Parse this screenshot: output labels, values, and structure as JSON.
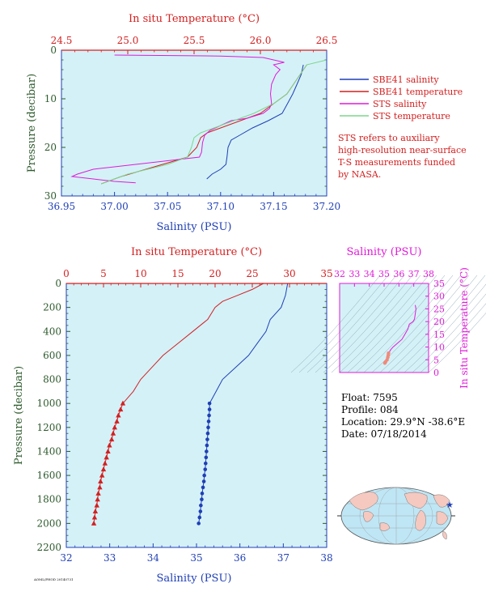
{
  "colors": {
    "red": "#d42020",
    "blue": "#1f3fb5",
    "magenta": "#e01ad8",
    "green": "#7dd68a",
    "salmon": "#f08a7a",
    "dark_green": "#2d5a2d",
    "plot_bg": "#d4f1f8"
  },
  "chart_data": [
    {
      "id": "upper",
      "type": "line",
      "title_top": "In situ Temperature (°C)",
      "xlabel": "Salinity (PSU)",
      "ylabel": "Pressure (decibar)",
      "x_ticks": [
        "36.95",
        "37.00",
        "37.05",
        "37.10",
        "37.15",
        "37.20"
      ],
      "x_top_ticks": [
        "24.5",
        "25.0",
        "25.5",
        "26.0",
        "26.5"
      ],
      "y_ticks": [
        "0",
        "10",
        "20",
        "30"
      ],
      "xlim": [
        36.95,
        37.2
      ],
      "x_top_lim": [
        24.5,
        26.5
      ],
      "ylim": [
        0,
        30
      ],
      "legend_placement": "right",
      "legend": [
        {
          "label": "SBE41 salinity",
          "color": "#1f3fb5"
        },
        {
          "label": "SBE41 temperature",
          "color": "#d42020"
        },
        {
          "label": "STS salinity",
          "color": "#e01ad8"
        },
        {
          "label": "STS temperature",
          "color": "#7dd68a"
        }
      ],
      "note": [
        "STS refers to auxiliary",
        "high-resolution near-surface",
        "T-S measurements funded",
        "by NASA."
      ],
      "series": [
        {
          "name": "SBE41 salinity",
          "axis": "bottom",
          "points": [
            [
              37.178,
              3
            ],
            [
              37.176,
              5
            ],
            [
              37.172,
              7
            ],
            [
              37.168,
              9
            ],
            [
              37.163,
              11
            ],
            [
              37.158,
              13
            ],
            [
              37.145,
              14.5
            ],
            [
              37.13,
              16
            ],
            [
              37.118,
              17.5
            ],
            [
              37.11,
              18.5
            ],
            [
              37.107,
              20
            ],
            [
              37.106,
              22
            ],
            [
              37.105,
              23.5
            ],
            [
              37.1,
              24.5
            ],
            [
              37.092,
              25.5
            ],
            [
              37.087,
              26.5
            ]
          ]
        },
        {
          "name": "SBE41 temperature",
          "axis": "top",
          "points": [
            [
              26.35,
              3
            ],
            [
              26.3,
              5
            ],
            [
              26.25,
              7
            ],
            [
              26.2,
              9
            ],
            [
              26.1,
              11
            ],
            [
              26.0,
              13
            ],
            [
              25.85,
              14.5
            ],
            [
              25.7,
              16
            ],
            [
              25.6,
              17
            ],
            [
              25.55,
              18
            ],
            [
              25.52,
              20
            ],
            [
              25.45,
              22
            ],
            [
              25.2,
              24
            ],
            [
              24.95,
              26
            ],
            [
              24.8,
              27.5
            ]
          ]
        },
        {
          "name": "STS salinity",
          "axis": "bottom",
          "points": [
            [
              37.0,
              1
            ],
            [
              37.1,
              1.2
            ],
            [
              37.14,
              1.5
            ],
            [
              37.15,
              2
            ],
            [
              37.16,
              2.5
            ],
            [
              37.15,
              3
            ],
            [
              37.156,
              4
            ],
            [
              37.152,
              5
            ],
            [
              37.15,
              6
            ],
            [
              37.148,
              7
            ],
            [
              37.147,
              9
            ],
            [
              37.148,
              11
            ],
            [
              37.146,
              12
            ],
            [
              37.14,
              13
            ],
            [
              37.125,
              14
            ],
            [
              37.11,
              14.5
            ],
            [
              37.1,
              15.5
            ],
            [
              37.09,
              16.5
            ],
            [
              37.085,
              17.5
            ],
            [
              37.083,
              19
            ],
            [
              37.082,
              21
            ],
            [
              37.08,
              22
            ],
            [
              37.06,
              22.5
            ],
            [
              37.04,
              23
            ],
            [
              37.02,
              23.5
            ],
            [
              37.0,
              24
            ],
            [
              36.98,
              24.5
            ],
            [
              36.965,
              25.5
            ],
            [
              36.96,
              26
            ],
            [
              36.98,
              26.5
            ],
            [
              37.0,
              27
            ],
            [
              37.02,
              27.3
            ]
          ]
        },
        {
          "name": "STS temperature",
          "axis": "top",
          "points": [
            [
              26.5,
              2
            ],
            [
              26.35,
              3
            ],
            [
              26.3,
              5
            ],
            [
              26.25,
              7
            ],
            [
              26.2,
              9
            ],
            [
              26.1,
              11
            ],
            [
              25.95,
              13
            ],
            [
              25.8,
              14.5
            ],
            [
              25.65,
              16
            ],
            [
              25.55,
              17
            ],
            [
              25.5,
              18
            ],
            [
              25.48,
              20
            ],
            [
              25.45,
              22
            ],
            [
              25.3,
              23.5
            ],
            [
              25.0,
              25.5
            ],
            [
              24.8,
              27.5
            ]
          ]
        }
      ]
    },
    {
      "id": "lower",
      "type": "line",
      "title_top": "In situ Temperature (°C)",
      "xlabel": "Salinity (PSU)",
      "ylabel": "Pressure (decibar)",
      "x_ticks": [
        "32",
        "33",
        "34",
        "35",
        "36",
        "37",
        "38"
      ],
      "x_top_ticks": [
        "0",
        "5",
        "10",
        "15",
        "20",
        "25",
        "30",
        "35"
      ],
      "y_ticks": [
        "0",
        "200",
        "400",
        "600",
        "800",
        "1000",
        "1200",
        "1400",
        "1600",
        "1800",
        "2000",
        "2200"
      ],
      "xlim": [
        32,
        38
      ],
      "x_top_lim": [
        0,
        35
      ],
      "ylim": [
        0,
        2200
      ],
      "series": [
        {
          "name": "temperature",
          "axis": "top",
          "marker": "triangle",
          "marker_from": 1000,
          "points": [
            [
              26.5,
              0
            ],
            [
              25,
              50
            ],
            [
              23,
              100
            ],
            [
              21,
              150
            ],
            [
              20,
              200
            ],
            [
              19,
              300
            ],
            [
              17,
              400
            ],
            [
              15,
              500
            ],
            [
              13,
              600
            ],
            [
              11.5,
              700
            ],
            [
              10,
              800
            ],
            [
              9,
              900
            ],
            [
              7.6,
              1000
            ],
            [
              7.3,
              1050
            ],
            [
              7.0,
              1100
            ],
            [
              6.8,
              1150
            ],
            [
              6.5,
              1200
            ],
            [
              6.3,
              1250
            ],
            [
              6.1,
              1300
            ],
            [
              5.8,
              1350
            ],
            [
              5.6,
              1400
            ],
            [
              5.4,
              1450
            ],
            [
              5.2,
              1500
            ],
            [
              5.0,
              1550
            ],
            [
              4.8,
              1600
            ],
            [
              4.6,
              1650
            ],
            [
              4.5,
              1700
            ],
            [
              4.3,
              1750
            ],
            [
              4.2,
              1800
            ],
            [
              4.1,
              1850
            ],
            [
              3.9,
              1900
            ],
            [
              3.8,
              1950
            ],
            [
              3.7,
              2000
            ]
          ]
        },
        {
          "name": "salinity",
          "axis": "bottom",
          "marker": "dot",
          "marker_from": 1000,
          "points": [
            [
              37.1,
              0
            ],
            [
              37.05,
              100
            ],
            [
              36.95,
              200
            ],
            [
              36.7,
              300
            ],
            [
              36.6,
              400
            ],
            [
              36.4,
              500
            ],
            [
              36.2,
              600
            ],
            [
              35.9,
              700
            ],
            [
              35.6,
              800
            ],
            [
              35.45,
              900
            ],
            [
              35.3,
              1000
            ],
            [
              35.3,
              1050
            ],
            [
              35.29,
              1100
            ],
            [
              35.28,
              1150
            ],
            [
              35.27,
              1200
            ],
            [
              35.26,
              1250
            ],
            [
              35.25,
              1300
            ],
            [
              35.24,
              1350
            ],
            [
              35.23,
              1400
            ],
            [
              35.22,
              1450
            ],
            [
              35.21,
              1500
            ],
            [
              35.2,
              1550
            ],
            [
              35.18,
              1600
            ],
            [
              35.17,
              1650
            ],
            [
              35.15,
              1700
            ],
            [
              35.13,
              1750
            ],
            [
              35.12,
              1800
            ],
            [
              35.1,
              1850
            ],
            [
              35.09,
              1900
            ],
            [
              35.07,
              1950
            ],
            [
              35.05,
              2000
            ]
          ]
        }
      ]
    },
    {
      "id": "ts",
      "type": "scatter",
      "title_top": "Salinity (PSU)",
      "ylabel": "In situ Temperature (°C)",
      "x_ticks": [
        "32",
        "33",
        "34",
        "35",
        "36",
        "37",
        "38"
      ],
      "y_ticks": [
        "0",
        "5",
        "10",
        "15",
        "20",
        "25",
        "30",
        "35"
      ],
      "xlim": [
        32,
        38
      ],
      "ylim": [
        0,
        35
      ],
      "series": [
        {
          "name": "profile",
          "points": [
            [
              35.05,
              3.7
            ],
            [
              35.1,
              4.2
            ],
            [
              35.2,
              5
            ],
            [
              35.25,
              6
            ],
            [
              35.28,
              6.8
            ],
            [
              35.3,
              7.6
            ],
            [
              35.45,
              9
            ],
            [
              35.6,
              10
            ],
            [
              35.9,
              11.5
            ],
            [
              36.2,
              13
            ],
            [
              36.4,
              15
            ],
            [
              36.6,
              17
            ],
            [
              36.7,
              19
            ],
            [
              36.95,
              20
            ],
            [
              37.05,
              21
            ],
            [
              37.1,
              23
            ],
            [
              37.15,
              25
            ],
            [
              37.1,
              26.5
            ]
          ]
        }
      ]
    }
  ],
  "float_info": {
    "float": "Float:  7595",
    "profile": "Profile:  084",
    "location": "Location:  29.9°N  -38.6°E",
    "date": "Date:  07/18/2014"
  },
  "footer": "AOML/PHOD 20140731"
}
